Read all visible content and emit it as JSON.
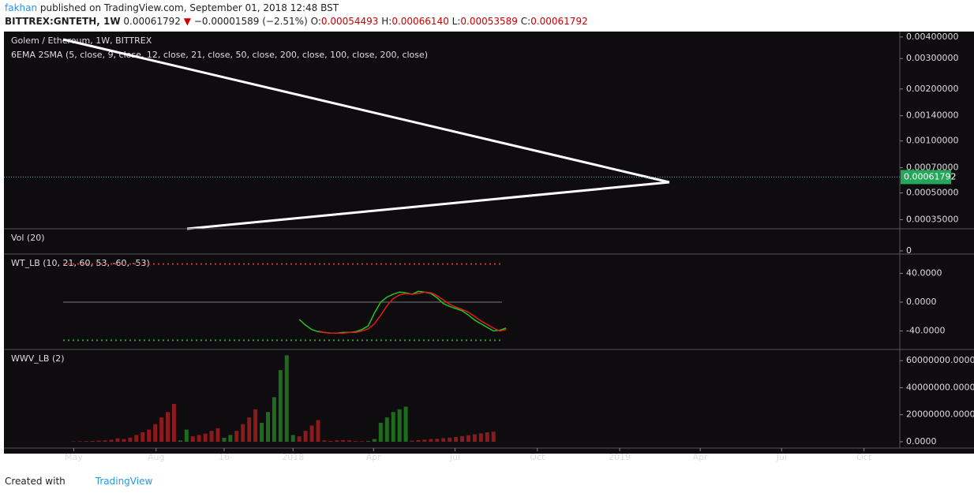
{
  "header": {
    "author": "fakhan",
    "published": "published on TradingView.com, September 01, 2018 12:48 BST",
    "symbol": "BITTREX:GNTETH, 1W",
    "last": "0.00061792",
    "change": "−0.00001589 (−2.51%)",
    "ohlc": [
      {
        "key": "O:",
        "value": "0.00054493"
      },
      {
        "key": "H:",
        "value": "0.00066140"
      },
      {
        "key": "L:",
        "value": "0.00053589"
      },
      {
        "key": "C:",
        "value": "0.00061792"
      }
    ]
  },
  "footer": {
    "created": "Created with",
    "brand": "TradingView"
  },
  "chart_data": [
    {
      "type": "price",
      "title": "Golem / Ethereum, 1W, BITTREX",
      "subtitle": "6EMA 2SMA (5, close, 9, close, 12, close, 21, close, 50, close, 200, close, 100, close, 200, close)",
      "log_scale": true,
      "ylim": [
        0.00031,
        0.0043
      ],
      "yticks": [
        {
          "value": 0.004,
          "label": "0.00400000"
        },
        {
          "value": 0.003,
          "label": "0.00300000"
        },
        {
          "value": 0.002,
          "label": "0.00200000"
        },
        {
          "value": 0.0014,
          "label": "0.00140000"
        },
        {
          "value": 0.001,
          "label": "0.00100000"
        },
        {
          "value": 0.0007,
          "label": "0.00070000"
        },
        {
          "value": 0.0005,
          "label": "0.00050000"
        },
        {
          "value": 0.00035,
          "label": "0.00035000"
        }
      ],
      "last_price": 0.00061792,
      "last_color": "#26a65b"
    },
    {
      "type": "volume",
      "title": "Vol (20)",
      "ylim": [
        0,
        1
      ],
      "yticks": [
        0
      ]
    },
    {
      "type": "line",
      "title": "WT_LB (10, 21, 60, 53, -60, -53)",
      "ylim": [
        -65.7,
        66.8
      ],
      "yticks": [
        {
          "value": 40,
          "label": "40.0000"
        },
        {
          "value": 0,
          "label": "0.0000"
        },
        {
          "value": -40,
          "label": "-40.0000"
        }
      ],
      "levels": [
        {
          "value": 53,
          "color": "#d32f2f"
        },
        {
          "value": -53,
          "color": "#2e9e2e"
        }
      ],
      "x": [
        "2018-01-08",
        "2018-01-15",
        "2018-01-22",
        "2018-01-29",
        "2018-02-05",
        "2018-02-12",
        "2018-02-19",
        "2018-02-26",
        "2018-03-05",
        "2018-03-12",
        "2018-03-19",
        "2018-03-26",
        "2018-04-02",
        "2018-04-09",
        "2018-04-16",
        "2018-04-23",
        "2018-04-30",
        "2018-05-07",
        "2018-05-14",
        "2018-05-21",
        "2018-05-28",
        "2018-06-04",
        "2018-06-11",
        "2018-06-18",
        "2018-06-25",
        "2018-07-02",
        "2018-07-09",
        "2018-07-16",
        "2018-07-23",
        "2018-07-30",
        "2018-08-06",
        "2018-08-13",
        "2018-08-20",
        "2018-08-27"
      ],
      "series": [
        {
          "color": "#22c522",
          "values": [
            -24,
            -32,
            -38,
            -41,
            -42,
            -43,
            -43,
            -42,
            -42,
            -41,
            -38,
            -33,
            -15,
            0,
            7,
            11,
            14,
            13,
            11,
            15,
            14,
            12,
            6,
            -2,
            -6,
            -9,
            -12,
            -18,
            -25,
            -30,
            -35,
            -40,
            -39,
            -36
          ]
        },
        {
          "color": "#e21b1b",
          "values": [
            null,
            null,
            null,
            -40,
            -42,
            -43,
            -43,
            -43,
            -42,
            -42,
            -40,
            -37,
            -30,
            -18,
            -5,
            5,
            10,
            12,
            11,
            12,
            14,
            13,
            9,
            3,
            -3,
            -7,
            -10,
            -14,
            -20,
            -26,
            -31,
            -36,
            -40,
            -38
          ]
        }
      ]
    },
    {
      "type": "bar",
      "title": "WWV_LB (2)",
      "ylim": [
        -4700000,
        68300000
      ],
      "yticks": [
        {
          "value": 60000000,
          "label": "60000000.0000"
        },
        {
          "value": 40000000,
          "label": "40000000.0000"
        },
        {
          "value": 20000000,
          "label": "20000000.0000"
        },
        {
          "value": 0,
          "label": "0.0000"
        }
      ],
      "xlim": [
        "2017-02-12",
        "2019-11-10"
      ],
      "xticks": [
        {
          "value": "2017-05-01",
          "label": "May"
        },
        {
          "value": "2017-08-01",
          "label": "Aug"
        },
        {
          "value": "2017-10-16",
          "label": "16"
        },
        {
          "value": "2018-01-01",
          "label": "2018"
        },
        {
          "value": "2018-04-01",
          "label": "Apr"
        },
        {
          "value": "2018-07-01",
          "label": "Jul"
        },
        {
          "value": "2018-10-01",
          "label": "Oct"
        },
        {
          "value": "2019-01-01",
          "label": "2019"
        },
        {
          "value": "2019-04-01",
          "label": "Apr"
        },
        {
          "value": "2019-07-01",
          "label": "Jul"
        },
        {
          "value": "2019-10-01",
          "label": "Oct"
        }
      ],
      "x": [
        "2017-05-01",
        "2017-05-08",
        "2017-05-15",
        "2017-05-22",
        "2017-05-29",
        "2017-06-05",
        "2017-06-12",
        "2017-06-19",
        "2017-06-26",
        "2017-07-03",
        "2017-07-10",
        "2017-07-17",
        "2017-07-24",
        "2017-07-31",
        "2017-08-07",
        "2017-08-14",
        "2017-08-21",
        "2017-08-28",
        "2017-09-04",
        "2017-09-11",
        "2017-09-18",
        "2017-09-25",
        "2017-10-02",
        "2017-10-09",
        "2017-10-16",
        "2017-10-23",
        "2017-10-30",
        "2017-11-06",
        "2017-11-13",
        "2017-11-20",
        "2017-11-27",
        "2017-12-04",
        "2017-12-11",
        "2017-12-18",
        "2017-12-25",
        "2018-01-01",
        "2018-01-08",
        "2018-01-15",
        "2018-01-22",
        "2018-01-29",
        "2018-02-05",
        "2018-02-12",
        "2018-02-19",
        "2018-02-26",
        "2018-03-05",
        "2018-03-12",
        "2018-03-19",
        "2018-03-26",
        "2018-04-02",
        "2018-04-09",
        "2018-04-16",
        "2018-04-23",
        "2018-04-30",
        "2018-05-07",
        "2018-05-14",
        "2018-05-21",
        "2018-05-28",
        "2018-06-04",
        "2018-06-11",
        "2018-06-18",
        "2018-06-25",
        "2018-07-02",
        "2018-07-09",
        "2018-07-16",
        "2018-07-23",
        "2018-07-30",
        "2018-08-06",
        "2018-08-13"
      ],
      "values": [
        300000,
        400000,
        500000,
        600000,
        800000,
        1000000,
        1500000,
        2500000,
        2000000,
        3000000,
        5000000,
        7000000,
        9000000,
        13000000,
        18000000,
        22000000,
        28000000,
        1000000,
        9000000,
        4000000,
        5000000,
        6000000,
        8000000,
        10000000,
        3000000,
        5000000,
        8000000,
        13000000,
        18000000,
        24000000,
        14000000,
        22000000,
        33000000,
        53000000,
        64000000,
        5000000,
        4000000,
        8000000,
        12000000,
        16000000,
        1000000,
        600000,
        1000000,
        1200000,
        1000000,
        500000,
        400000,
        500000,
        2000000,
        14000000,
        18000000,
        22000000,
        24000000,
        26000000,
        800000,
        1200000,
        1600000,
        2000000,
        2200000,
        2600000,
        3000000,
        3500000,
        4200000,
        4800000,
        5500000,
        6200000,
        7000000,
        7500000
      ],
      "colors": [
        "#8b1a1a",
        "#8b1a1a",
        "#8b1a1a",
        "#8b1a1a",
        "#8b1a1a",
        "#8b1a1a",
        "#8b1a1a",
        "#8b1a1a",
        "#8b1a1a",
        "#8b1a1a",
        "#8b1a1a",
        "#8b1a1a",
        "#8b1a1a",
        "#8b1a1a",
        "#8b1a1a",
        "#8b1a1a",
        "#8b1a1a",
        "#1e6b1e",
        "#1e6b1e",
        "#8b1a1a",
        "#8b1a1a",
        "#8b1a1a",
        "#8b1a1a",
        "#8b1a1a",
        "#1e6b1e",
        "#1e6b1e",
        "#8b1a1a",
        "#8b1a1a",
        "#8b1a1a",
        "#8b1a1a",
        "#1e6b1e",
        "#1e6b1e",
        "#1e6b1e",
        "#1e6b1e",
        "#1e6b1e",
        "#1e6b1e",
        "#8b1a1a",
        "#8b1a1a",
        "#8b1a1a",
        "#8b1a1a",
        "#8b1a1a",
        "#8b1a1a",
        "#8b1a1a",
        "#8b1a1a",
        "#8b1a1a",
        "#8b1a1a",
        "#8b1a1a",
        "#1e6b1e",
        "#1e6b1e",
        "#1e6b1e",
        "#1e6b1e",
        "#1e6b1e",
        "#1e6b1e",
        "#1e6b1e",
        "#8b1a1a",
        "#8b1a1a",
        "#8b1a1a",
        "#8b1a1a",
        "#8b1a1a",
        "#8b1a1a",
        "#8b1a1a",
        "#8b1a1a",
        "#8b1a1a",
        "#8b1a1a",
        "#8b1a1a",
        "#8b1a1a",
        "#8b1a1a",
        "#8b1a1a"
      ]
    }
  ]
}
